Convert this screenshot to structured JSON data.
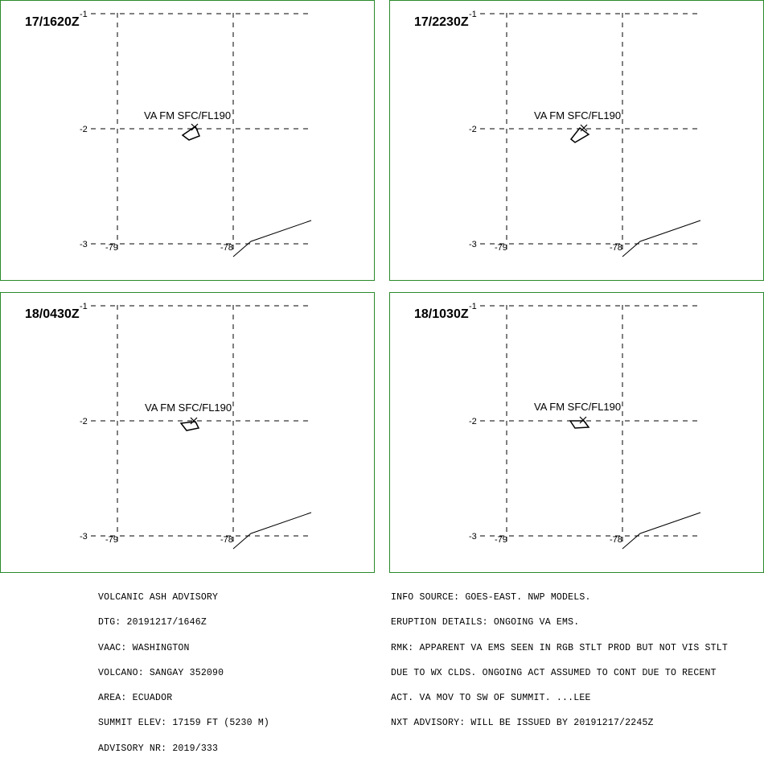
{
  "panels": [
    {
      "time": "17/1620Z",
      "va_label": "VA FM SFC/FL190"
    },
    {
      "time": "17/2230Z",
      "va_label": "VA FM SFC/FL190"
    },
    {
      "time": "18/0430Z",
      "va_label": "VA FM SFC/FL190"
    },
    {
      "time": "18/1030Z",
      "va_label": "VA FM SFC/FL190"
    }
  ],
  "grid": {
    "lat_labels": [
      "-1",
      "-2",
      "-3"
    ],
    "lon_labels": [
      "-79",
      "-78"
    ]
  },
  "advisory": {
    "lines": [
      "VOLCANIC ASH ADVISORY",
      "DTG: 20191217/1646Z",
      "VAAC: WASHINGTON",
      "VOLCANO: SANGAY 352090",
      "AREA: ECUADOR",
      "SUMMIT ELEV: 17159 FT (5230 M)",
      "ADVISORY NR: 2019/333"
    ]
  },
  "info": {
    "lines": [
      "INFO SOURCE: GOES-EAST. NWP MODELS.",
      "ERUPTION DETAILS: ONGOING VA EMS.",
      "RMK: APPARENT VA EMS SEEN IN RGB STLT PROD BUT NOT VIS STLT",
      "DUE TO WX CLDS. ONGOING ACT ASSUMED TO CONT DUE TO RECENT",
      "ACT. VA MOV TO SW OF SUMMIT. ...LEE",
      "NXT ADVISORY: WILL BE ISSUED BY 20191217/2245Z"
    ]
  },
  "colors": {
    "border": "#2a8a2a",
    "lines": "#000000"
  }
}
